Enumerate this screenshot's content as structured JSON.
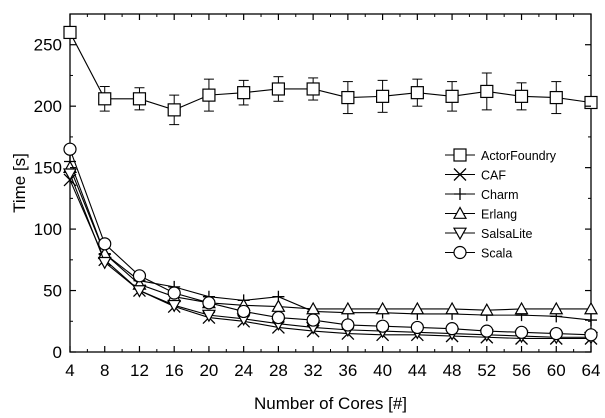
{
  "chart_data": {
    "type": "line",
    "title": "",
    "xlabel": "Number of Cores [#]",
    "ylabel": "Time [s]",
    "xlim": [
      4,
      64
    ],
    "ylim": [
      0,
      275
    ],
    "xticks": [
      4,
      8,
      12,
      16,
      20,
      24,
      28,
      32,
      36,
      40,
      44,
      48,
      52,
      56,
      60,
      64
    ],
    "yticks": [
      0,
      50,
      100,
      150,
      200,
      250
    ],
    "x": [
      4,
      8,
      12,
      16,
      20,
      24,
      28,
      32,
      36,
      40,
      44,
      48,
      52,
      56,
      60,
      64
    ],
    "grid": false,
    "legend_position": "right",
    "series": [
      {
        "name": "ActorFoundry",
        "marker": "square",
        "values": [
          260,
          206,
          206,
          197,
          209,
          211,
          214,
          214,
          207,
          208,
          211,
          208,
          212,
          208,
          207,
          203
        ],
        "error": [
          0,
          10,
          9,
          12,
          13,
          10,
          10,
          9,
          13,
          13,
          11,
          12,
          15,
          11,
          13,
          0
        ]
      },
      {
        "name": "CAF",
        "marker": "x",
        "values": [
          140,
          75,
          50,
          37,
          28,
          25,
          20,
          17,
          15,
          14,
          14,
          13,
          12,
          11,
          11,
          11
        ],
        "error": [
          0,
          0,
          0,
          0,
          0,
          0,
          0,
          0,
          0,
          0,
          0,
          0,
          0,
          0,
          0,
          0
        ]
      },
      {
        "name": "Charm",
        "marker": "plus",
        "values": [
          155,
          80,
          58,
          53,
          45,
          42,
          45,
          33,
          32,
          32,
          31,
          31,
          30,
          30,
          29,
          26
        ],
        "error": [
          0,
          0,
          0,
          0,
          0,
          0,
          0,
          0,
          0,
          0,
          0,
          0,
          0,
          0,
          0,
          0
        ]
      },
      {
        "name": "Erlang",
        "marker": "triangle-up",
        "values": [
          150,
          80,
          55,
          45,
          40,
          38,
          37,
          35,
          35,
          35,
          35,
          35,
          34,
          35,
          35,
          35
        ],
        "error": [
          0,
          0,
          0,
          0,
          0,
          0,
          0,
          0,
          0,
          0,
          0,
          0,
          0,
          0,
          0,
          0
        ]
      },
      {
        "name": "SalsaLite",
        "marker": "triangle-down",
        "values": [
          145,
          73,
          50,
          38,
          30,
          27,
          23,
          20,
          18,
          17,
          16,
          15,
          14,
          13,
          12,
          12
        ],
        "error": [
          0,
          0,
          0,
          0,
          0,
          0,
          0,
          0,
          0,
          0,
          0,
          0,
          0,
          0,
          0,
          0
        ]
      },
      {
        "name": "Scala",
        "marker": "circle",
        "values": [
          165,
          88,
          62,
          48,
          40,
          33,
          28,
          26,
          22,
          21,
          20,
          19,
          17,
          16,
          15,
          14
        ],
        "error": [
          0,
          0,
          0,
          0,
          0,
          0,
          0,
          0,
          0,
          0,
          0,
          0,
          0,
          0,
          0,
          0
        ]
      }
    ]
  }
}
